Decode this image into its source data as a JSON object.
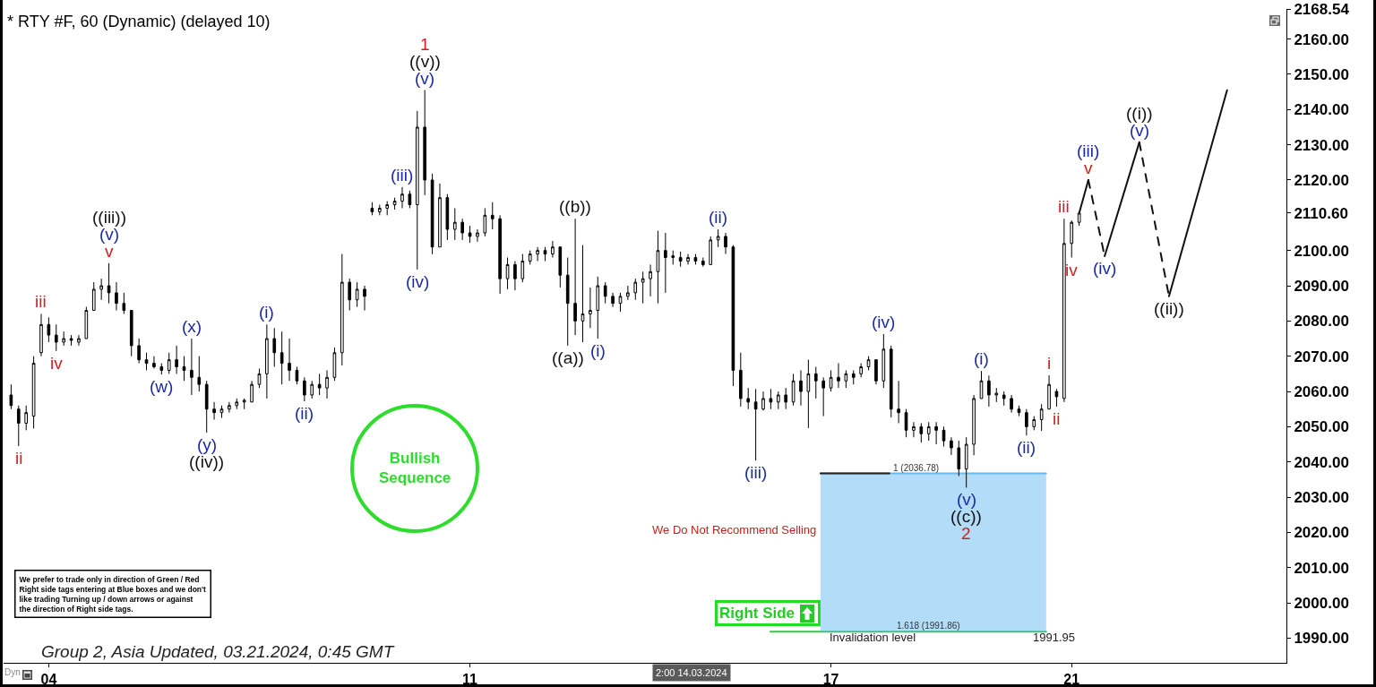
{
  "chart_data": {
    "type": "candlestick",
    "title": "* RTY #F, 60 (Dynamic) (delayed 10)",
    "color": "#000000",
    "x": [
      "2024-03-03T09:00",
      "2024-03-03T12:00",
      "2024-03-03T15:00",
      "2024-03-03T18:00",
      "2024-03-03T21:00",
      "2024-03-04T00:00",
      "2024-03-04T03:00",
      "2024-03-04T06:00",
      "2024-03-04T09:00",
      "2024-03-04T12:00",
      "2024-03-04T15:00",
      "2024-03-04T18:00",
      "2024-03-04T21:00",
      "2024-03-05T00:00",
      "2024-03-05T03:00",
      "2024-03-05T06:00",
      "2024-03-05T09:00",
      "2024-03-05T12:00",
      "2024-03-05T15:00",
      "2024-03-05T18:00",
      "2024-03-05T21:00",
      "2024-03-06T00:00",
      "2024-03-06T03:00",
      "2024-03-06T06:00",
      "2024-03-06T09:00",
      "2024-03-06T12:00",
      "2024-03-06T15:00",
      "2024-03-06T18:00",
      "2024-03-06T21:00",
      "2024-03-07T00:00",
      "2024-03-07T03:00",
      "2024-03-07T06:00",
      "2024-03-07T09:00",
      "2024-03-07T12:00",
      "2024-03-07T15:00",
      "2024-03-07T18:00",
      "2024-03-07T21:00",
      "2024-03-08T00:00",
      "2024-03-08T03:00",
      "2024-03-08T06:00",
      "2024-03-08T09:00",
      "2024-03-08T12:00",
      "2024-03-08T15:00",
      "2024-03-08T18:00",
      "2024-03-08T21:00",
      "2024-03-09T00:00",
      "2024-03-09T03:00",
      "2024-03-09T06:00",
      "2024-03-09T09:00",
      "2024-03-09T12:00",
      "2024-03-09T15:00",
      "2024-03-09T18:00",
      "2024-03-09T21:00",
      "2024-03-10T00:00",
      "2024-03-10T03:00",
      "2024-03-10T06:00",
      "2024-03-10T09:00",
      "2024-03-10T12:00",
      "2024-03-10T15:00",
      "2024-03-10T18:00",
      "2024-03-10T21:00",
      "2024-03-11T00:00",
      "2024-03-11T03:00",
      "2024-03-11T06:00",
      "2024-03-11T09:00",
      "2024-03-11T12:00",
      "2024-03-11T15:00",
      "2024-03-11T18:00",
      "2024-03-11T21:00",
      "2024-03-12T00:00",
      "2024-03-12T03:00",
      "2024-03-12T06:00",
      "2024-03-12T09:00",
      "2024-03-12T12:00",
      "2024-03-12T15:00",
      "2024-03-12T18:00",
      "2024-03-12T21:00",
      "2024-03-13T00:00",
      "2024-03-13T03:00",
      "2024-03-13T06:00",
      "2024-03-13T09:00",
      "2024-03-13T12:00",
      "2024-03-13T15:00",
      "2024-03-13T18:00",
      "2024-03-13T21:00",
      "2024-03-14T00:00",
      "2024-03-14T03:00",
      "2024-03-14T06:00",
      "2024-03-14T09:00",
      "2024-03-14T12:00",
      "2024-03-14T15:00",
      "2024-03-14T18:00",
      "2024-03-14T21:00",
      "2024-03-15T00:00",
      "2024-03-15T03:00",
      "2024-03-15T06:00",
      "2024-03-15T09:00",
      "2024-03-15T12:00",
      "2024-03-15T15:00",
      "2024-03-15T18:00",
      "2024-03-15T21:00",
      "2024-03-16T00:00",
      "2024-03-16T03:00",
      "2024-03-16T06:00",
      "2024-03-16T09:00",
      "2024-03-16T12:00",
      "2024-03-16T15:00",
      "2024-03-16T18:00",
      "2024-03-16T21:00",
      "2024-03-17T00:00",
      "2024-03-17T03:00",
      "2024-03-17T06:00",
      "2024-03-17T09:00",
      "2024-03-17T12:00",
      "2024-03-17T15:00",
      "2024-03-17T18:00",
      "2024-03-17T21:00",
      "2024-03-18T00:00",
      "2024-03-18T03:00",
      "2024-03-18T06:00",
      "2024-03-18T09:00",
      "2024-03-18T12:00",
      "2024-03-18T15:00",
      "2024-03-18T18:00",
      "2024-03-18T21:00",
      "2024-03-19T00:00",
      "2024-03-19T03:00",
      "2024-03-19T06:00",
      "2024-03-19T09:00",
      "2024-03-19T12:00",
      "2024-03-19T15:00",
      "2024-03-19T18:00",
      "2024-03-19T21:00",
      "2024-03-20T00:00",
      "2024-03-20T03:00",
      "2024-03-20T06:00",
      "2024-03-20T09:00",
      "2024-03-20T12:00",
      "2024-03-20T15:00",
      "2024-03-20T18:00",
      "2024-03-20T21:00",
      "2024-03-21T00:00",
      "2024-03-21T03:00"
    ],
    "ohlc": [
      [
        2059,
        2062,
        2055,
        2056
      ],
      [
        2055,
        2056,
        2044.5,
        2051
      ],
      [
        2051,
        2056,
        2049,
        2054
      ],
      [
        2053,
        2070,
        2049.5,
        2068
      ],
      [
        2071,
        2082,
        2070,
        2079
      ],
      [
        2079,
        2081,
        2074,
        2076
      ],
      [
        2076,
        2079,
        2071.5,
        2074
      ],
      [
        2074,
        2077,
        2073,
        2075
      ],
      [
        2075,
        2076,
        2073,
        2074.5
      ],
      [
        2074,
        2076,
        2073,
        2075
      ],
      [
        2075,
        2084,
        2075,
        2083
      ],
      [
        2083,
        2091,
        2083,
        2089
      ],
      [
        2089,
        2092,
        2086,
        2090
      ],
      [
        2090,
        2096.4,
        2085,
        2088
      ],
      [
        2088,
        2091,
        2083,
        2085
      ],
      [
        2085,
        2088,
        2082,
        2083
      ],
      [
        2083,
        2083,
        2070,
        2073
      ],
      [
        2073,
        2075,
        2068,
        2069
      ],
      [
        2069,
        2071,
        2066,
        2068
      ],
      [
        2068,
        2070,
        2066.5,
        2067
      ],
      [
        2067,
        2068,
        2064.8,
        2066
      ],
      [
        2066,
        2071,
        2065,
        2069
      ],
      [
        2069,
        2073,
        2065,
        2067
      ],
      [
        2067,
        2070,
        2063,
        2066
      ],
      [
        2066,
        2075,
        2059,
        2064
      ],
      [
        2064,
        2070,
        2060,
        2062
      ],
      [
        2062,
        2063,
        2048.3,
        2055
      ],
      [
        2055,
        2057,
        2052,
        2054
      ],
      [
        2054,
        2056,
        2052.5,
        2055
      ],
      [
        2055,
        2057,
        2054,
        2056
      ],
      [
        2056,
        2058,
        2055,
        2057
      ],
      [
        2057,
        2058,
        2055,
        2057.5
      ],
      [
        2057,
        2063,
        2057,
        2062
      ],
      [
        2062,
        2066.5,
        2061,
        2065
      ],
      [
        2065,
        2079,
        2058,
        2075
      ],
      [
        2075,
        2078,
        2067,
        2071
      ],
      [
        2071,
        2077,
        2062,
        2068
      ],
      [
        2068,
        2075,
        2063,
        2066
      ],
      [
        2066,
        2067,
        2062,
        2063
      ],
      [
        2063,
        2064,
        2057.2,
        2059
      ],
      [
        2059,
        2063,
        2058,
        2062
      ],
      [
        2062,
        2065,
        2059,
        2061
      ],
      [
        2061,
        2066,
        2058,
        2064
      ],
      [
        2064,
        2072.5,
        2063,
        2071
      ],
      [
        2071,
        2099,
        2067.4,
        2091
      ],
      [
        2091,
        2092,
        2083,
        2086
      ],
      [
        2086,
        2091,
        2084,
        2089
      ],
      [
        2089,
        2090,
        2083,
        2087
      ],
      [
        2112,
        2113.7,
        2110,
        2111
      ],
      [
        2111,
        2113,
        2110,
        2112
      ],
      [
        2112,
        2114,
        2110,
        2113
      ],
      [
        2113,
        2115,
        2111.6,
        2114
      ],
      [
        2114,
        2118,
        2112,
        2116
      ],
      [
        2116,
        2117,
        2112,
        2113
      ],
      [
        2113,
        2139.6,
        2094.6,
        2135
      ],
      [
        2135,
        2145.5,
        2115.7,
        2120
      ],
      [
        2120,
        2121.8,
        2099,
        2101
      ],
      [
        2101,
        2119,
        2101,
        2115
      ],
      [
        2115,
        2116,
        2103,
        2106
      ],
      [
        2106,
        2112,
        2103,
        2108
      ],
      [
        2108,
        2109,
        2103,
        2105
      ],
      [
        2105,
        2107,
        2102.2,
        2104
      ],
      [
        2104,
        2106,
        2102.5,
        2105
      ],
      [
        2105,
        2112,
        2104,
        2110
      ],
      [
        2110,
        2113.7,
        2106,
        2109
      ],
      [
        2109,
        2110,
        2087.7,
        2092
      ],
      [
        2092,
        2098,
        2089,
        2096
      ],
      [
        2096,
        2097,
        2088.7,
        2092
      ],
      [
        2092,
        2099,
        2091,
        2097
      ],
      [
        2097,
        2100,
        2096,
        2099
      ],
      [
        2099,
        2101,
        2097,
        2100
      ],
      [
        2100,
        2101,
        2097,
        2099
      ],
      [
        2099,
        2102.7,
        2098,
        2101
      ],
      [
        2101,
        2101,
        2089.5,
        2093
      ],
      [
        2093,
        2098,
        2073,
        2085
      ],
      [
        2085,
        2109,
        2076,
        2080
      ],
      [
        2080,
        2101.5,
        2074,
        2082
      ],
      [
        2082,
        2089.5,
        2078,
        2083
      ],
      [
        2083,
        2092.6,
        2075,
        2090
      ],
      [
        2090,
        2091,
        2085,
        2087
      ],
      [
        2087,
        2088,
        2084,
        2085
      ],
      [
        2085,
        2088,
        2082.6,
        2087
      ],
      [
        2087,
        2090,
        2086,
        2088
      ],
      [
        2088,
        2092,
        2086,
        2091
      ],
      [
        2091,
        2094,
        2085,
        2092
      ],
      [
        2092,
        2096,
        2087,
        2094
      ],
      [
        2094,
        2105.6,
        2085,
        2100
      ],
      [
        2100,
        2105,
        2088,
        2098
      ],
      [
        2098,
        2100,
        2096,
        2098.5
      ],
      [
        2098,
        2099.7,
        2095.4,
        2097
      ],
      [
        2097,
        2099,
        2096,
        2098
      ],
      [
        2098,
        2099,
        2096,
        2097
      ],
      [
        2097,
        2098,
        2095.4,
        2096
      ],
      [
        2096,
        2104,
        2096,
        2103
      ],
      [
        2103,
        2106,
        2101,
        2104
      ],
      [
        2104,
        2105,
        2099,
        2101
      ],
      [
        2101,
        2101.5,
        2061.5,
        2066
      ],
      [
        2066,
        2071,
        2055.7,
        2058
      ],
      [
        2058,
        2061,
        2055,
        2057
      ],
      [
        2057,
        2060.7,
        2040.4,
        2055
      ],
      [
        2055,
        2060,
        2054.6,
        2058
      ],
      [
        2058,
        2060.7,
        2055,
        2057
      ],
      [
        2057,
        2060,
        2055,
        2059
      ],
      [
        2059,
        2061,
        2055,
        2057
      ],
      [
        2057,
        2065,
        2056,
        2063
      ],
      [
        2063,
        2066,
        2056,
        2060
      ],
      [
        2060,
        2069,
        2049.6,
        2065
      ],
      [
        2065,
        2067,
        2058,
        2063
      ],
      [
        2063,
        2064,
        2053,
        2061
      ],
      [
        2061,
        2066,
        2060,
        2064
      ],
      [
        2064,
        2068,
        2061,
        2063
      ],
      [
        2063,
        2066,
        2061,
        2065
      ],
      [
        2065,
        2066,
        2062,
        2064
      ],
      [
        2065,
        2068,
        2064,
        2067
      ],
      [
        2067,
        2070,
        2066,
        2069
      ],
      [
        2069,
        2069,
        2062,
        2063
      ],
      [
        2063,
        2076.3,
        2061,
        2072
      ],
      [
        2072,
        2073,
        2052.6,
        2055
      ],
      [
        2055,
        2063,
        2051,
        2054
      ],
      [
        2054,
        2055,
        2047,
        2049
      ],
      [
        2049,
        2051.3,
        2047,
        2050
      ],
      [
        2050,
        2051,
        2045.5,
        2048
      ],
      [
        2048,
        2051.3,
        2046,
        2050
      ],
      [
        2050,
        2051.3,
        2045,
        2049
      ],
      [
        2049,
        2050,
        2044.4,
        2046
      ],
      [
        2046,
        2047,
        2042,
        2044
      ],
      [
        2044,
        2046,
        2036,
        2038
      ],
      [
        2038,
        2047,
        2032.7,
        2045
      ],
      [
        2045,
        2059,
        2041.9,
        2058
      ],
      [
        2058,
        2065.8,
        2058,
        2063
      ],
      [
        2063,
        2064.5,
        2055.7,
        2059
      ],
      [
        2059,
        2061,
        2057,
        2059.5
      ],
      [
        2059,
        2060,
        2056,
        2058
      ],
      [
        2058,
        2059,
        2054,
        2055
      ],
      [
        2055,
        2056,
        2053,
        2054
      ],
      [
        2054,
        2055,
        2047.5,
        2050
      ],
      [
        2050,
        2053,
        2049,
        2052
      ],
      [
        2052,
        2056.4,
        2048.8,
        2055
      ],
      [
        2055,
        2064.6,
        2055,
        2062
      ],
      [
        2060,
        2060.7,
        2055.7,
        2058.5
      ],
      [
        2058,
        2109,
        2057,
        2102
      ],
      [
        2102,
        2108.5,
        2098,
        2108
      ],
      [
        2108,
        2110.6,
        2107,
        2110.6
      ]
    ],
    "series": [
      {
        "type": "line",
        "color": "#2ecc40",
        "x": [
          "2024-03-15T23:50",
          "2024-03-20T13:50"
        ],
        "values": [
          1991.86,
          1991.86
        ]
      },
      {
        "type": "line",
        "color": "#67b9f3",
        "x": [
          "2024-03-16T19:50",
          "2024-03-20T13:50"
        ],
        "values": [
          2036.78,
          2036.78
        ],
        "lower": [
          1991.86,
          1991.86
        ],
        "upper": [
          2036.78,
          2036.78
        ]
      },
      {
        "type": "line",
        "color": "#222222",
        "x": [
          "2024-03-16T19:50",
          "2024-03-17T23:20"
        ],
        "values": [
          2036.78,
          2036.78
        ]
      },
      {
        "type": "line",
        "color": "#111111",
        "x": [
          "2024-03-21T03:00",
          "2024-03-21T06:40"
        ],
        "values": [
          2110.6,
          2120
        ]
      },
      {
        "type": "line",
        "color": "#111111",
        "line_style": "dashed",
        "x": [
          "2024-03-21T06:40",
          "2024-03-21T13:10"
        ],
        "values": [
          2120,
          2098.4
        ]
      },
      {
        "type": "line",
        "color": "#111111",
        "x": [
          "2024-03-21T13:10",
          "2024-03-22T03:00"
        ],
        "values": [
          2098.4,
          2130.7
        ]
      },
      {
        "type": "line",
        "color": "#111111",
        "line_style": "dashed",
        "x": [
          "2024-03-22T03:00",
          "2024-03-22T14:50"
        ],
        "values": [
          2130.7,
          2087
        ]
      },
      {
        "type": "line",
        "color": "#111111",
        "x": [
          "2024-03-22T14:50",
          "2024-03-23T14:00"
        ],
        "values": [
          2087,
          2145.5
        ]
      }
    ],
    "xlim": [
      "2024-03-03T06:00",
      "2024-03-24T13:40"
    ],
    "xticks": [
      {
        "value": "2024-03-04",
        "label": "04"
      },
      {
        "value": "2024-03-11",
        "label": "11"
      },
      {
        "value": "2024-03-17",
        "label": "17"
      },
      {
        "value": "2024-03-21",
        "label": "21"
      }
    ],
    "ylim": [
      1983,
      2168.54
    ],
    "yticks": [
      {
        "value": 2168.54,
        "label": "2168.54"
      },
      {
        "value": 2160,
        "label": "2160.00"
      },
      {
        "value": 2150,
        "label": "2150.00"
      },
      {
        "value": 2140,
        "label": "2140.00"
      },
      {
        "value": 2130,
        "label": "2130.00"
      },
      {
        "value": 2120,
        "label": "2120.00"
      },
      {
        "value": 2110.6,
        "label": "2110.60"
      },
      {
        "value": 2100,
        "label": "2100.00"
      },
      {
        "value": 2090,
        "label": "2090.00"
      },
      {
        "value": 2080,
        "label": "2080.00"
      },
      {
        "value": 2070,
        "label": "2070.00"
      },
      {
        "value": 2060,
        "label": "2060.00"
      },
      {
        "value": 2050,
        "label": "2050.00"
      },
      {
        "value": 2040,
        "label": "2040.00"
      },
      {
        "value": 2030,
        "label": "2030.00"
      },
      {
        "value": 2020,
        "label": "2020.00"
      },
      {
        "value": 2010,
        "label": "2010.00"
      },
      {
        "value": 2000,
        "label": "2000.00"
      },
      {
        "value": 1990,
        "label": "1990.00"
      }
    ],
    "annotations": [
      "Bullish\nSequence",
      "We Do Not Recommend Selling",
      "Right Side",
      "We prefer to trade only in direction of Green / Red\nRight side tags entering at Blue boxes and we don't\nlike trading Turning up / down arrows or against\nthe direction of Right side tags.",
      "Group 2, Asia Updated, 03.21.2024, 0:45 GMT",
      "1 (2036.78)",
      "1.618 (1991.86)",
      "Invalidation level",
      "1991.95",
      "Dyn",
      "2:00 14.03.2024",
      {
        "text": "ii",
        "x": "2024-03-03T12:00",
        "y": 2044.5
      },
      {
        "text": "iii",
        "x": "2024-03-03T21:00",
        "y": 2082
      },
      {
        "text": "iv",
        "x": "2024-03-04T03:00",
        "y": 2071.5
      },
      {
        "text": "v",
        "x": "2024-03-05T00:00",
        "y": 2096.4
      },
      {
        "text": "(v)",
        "x": "2024-03-05T00:00",
        "y": 2096.4
      },
      {
        "text": "((iii))",
        "x": "2024-03-05T00:00",
        "y": 2096.4
      },
      {
        "text": "(w)",
        "x": "2024-03-05T21:00",
        "y": 2064.8
      },
      {
        "text": "(x)",
        "x": "2024-03-06T09:00",
        "y": 2075
      },
      {
        "text": "(y)",
        "x": "2024-03-06T15:00",
        "y": 2048.3
      },
      {
        "text": "((iv))",
        "x": "2024-03-06T15:00",
        "y": 2048.3
      },
      {
        "text": "(i)",
        "x": "2024-03-07T15:00",
        "y": 2079
      },
      {
        "text": "(ii)",
        "x": "2024-03-08T06:00",
        "y": 2057.2
      },
      {
        "text": "(iii)",
        "x": "2024-03-09T21:00",
        "y": 2118
      },
      {
        "text": "(iv)",
        "x": "2024-03-10T03:00",
        "y": 2094.6
      },
      {
        "text": "(v)",
        "x": "2024-03-10T06:00",
        "y": 2145.5
      },
      {
        "text": "((v))",
        "x": "2024-03-10T06:00",
        "y": 2145.5
      },
      {
        "text": "1",
        "x": "2024-03-10T06:00",
        "y": 2145.5
      },
      {
        "text": "((b))",
        "x": "2024-03-12T18:00",
        "y": 2109
      },
      {
        "text": "((a))",
        "x": "2024-03-12T15:00",
        "y": 2073
      },
      {
        "text": "(i)",
        "x": "2024-03-13T03:00",
        "y": 2075
      },
      {
        "text": "(ii)",
        "x": "2024-03-15T03:00",
        "y": 2106
      },
      {
        "text": "(iii)",
        "x": "2024-03-15T18:00",
        "y": 2040.4
      },
      {
        "text": "(iv)",
        "x": "2024-03-17T21:00",
        "y": 2076.3
      },
      {
        "text": "(v)",
        "x": "2024-03-19T06:00",
        "y": 2032.7
      },
      {
        "text": "((c))",
        "x": "2024-03-19T06:00",
        "y": 2032.7
      },
      {
        "text": "2",
        "x": "2024-03-19T06:00",
        "y": 2032.7
      },
      {
        "text": "(i)",
        "x": "2024-03-19T12:00",
        "y": 2065.8
      },
      {
        "text": "(ii)",
        "x": "2024-03-20T06:00",
        "y": 2047.5
      },
      {
        "text": "i",
        "x": "2024-03-20T15:00",
        "y": 2064.6
      },
      {
        "text": "ii",
        "x": "2024-03-20T18:00",
        "y": 2055.7
      },
      {
        "text": "iii",
        "x": "2024-03-20T21:00",
        "y": 2109
      },
      {
        "text": "iv",
        "x": "2024-03-21T00:00",
        "y": 2098
      },
      {
        "text": "v",
        "x": "2024-03-21T06:40",
        "y": 2120
      },
      {
        "text": "(iii)",
        "x": "2024-03-21T06:40",
        "y": 2120
      },
      {
        "text": "(iv)",
        "x": "2024-03-21T13:10",
        "y": 2098.4
      },
      {
        "text": "(v)",
        "x": "2024-03-22T03:00",
        "y": 2130.7
      },
      {
        "text": "((i))",
        "x": "2024-03-22T03:00",
        "y": 2130.7
      },
      {
        "text": "((ii))",
        "x": "2024-03-22T14:50",
        "y": 2087
      }
    ]
  }
}
